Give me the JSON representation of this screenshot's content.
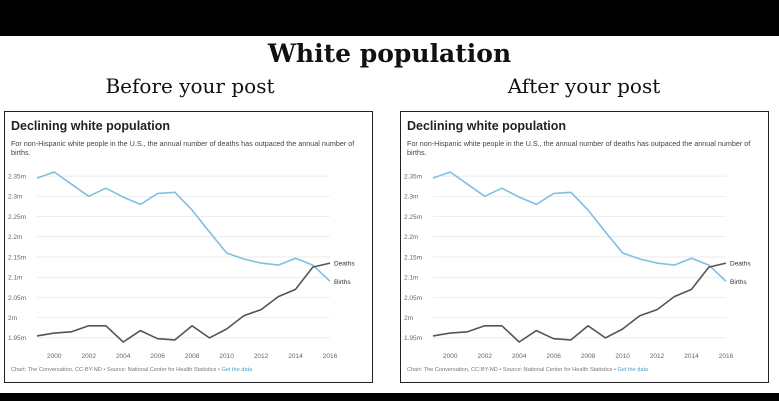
{
  "page": {
    "title": "White population",
    "left_caption": "Before your post",
    "right_caption": "After your post"
  },
  "chart_common": {
    "title": "Declining white population",
    "subtitle": "For non-Hispanic white people in the U.S., the annual number of deaths has outpaced the annual number of births.",
    "footnote": "Chart: The Conversation, CC-BY-ND • Source: National Center for Health Statistics • ",
    "footnote_link": "Get the data"
  },
  "chart_data": [
    {
      "type": "line",
      "title": "Declining white population",
      "x": [
        1999,
        2000,
        2001,
        2002,
        2003,
        2004,
        2005,
        2006,
        2007,
        2008,
        2009,
        2010,
        2011,
        2012,
        2013,
        2014,
        2015,
        2016
      ],
      "series": [
        {
          "name": "Births",
          "color": "#7fbfe0",
          "values": [
            2.345,
            2.36,
            2.33,
            2.3,
            2.32,
            2.298,
            2.28,
            2.307,
            2.31,
            2.266,
            2.212,
            2.16,
            2.145,
            2.135,
            2.13,
            2.147,
            2.13,
            2.09
          ]
        },
        {
          "name": "Deaths",
          "color": "#555555",
          "values": [
            1.955,
            1.962,
            1.965,
            1.98,
            1.98,
            1.94,
            1.968,
            1.948,
            1.945,
            1.98,
            1.95,
            1.972,
            2.005,
            2.02,
            2.052,
            2.07,
            2.125,
            2.135
          ]
        }
      ],
      "y_ticks": [
        1.95,
        2.0,
        2.05,
        2.1,
        2.15,
        2.2,
        2.25,
        2.3,
        2.35
      ],
      "y_tick_labels": [
        "1.95m",
        "2m",
        "2.05m",
        "2.1m",
        "2.15m",
        "2.2m",
        "2.25m",
        "2.3m",
        "2.35m"
      ],
      "x_ticks": [
        2000,
        2002,
        2004,
        2006,
        2008,
        2010,
        2012,
        2014,
        2016
      ],
      "ylim": [
        1.93,
        2.37
      ],
      "xlim": [
        1999,
        2016
      ],
      "grid": true
    },
    {
      "type": "line",
      "title": "Declining white population",
      "x": [
        1999,
        2000,
        2001,
        2002,
        2003,
        2004,
        2005,
        2006,
        2007,
        2008,
        2009,
        2010,
        2011,
        2012,
        2013,
        2014,
        2015,
        2016
      ],
      "series": [
        {
          "name": "Births",
          "color": "#7fbfe0",
          "values": [
            2.345,
            2.36,
            2.33,
            2.3,
            2.32,
            2.298,
            2.28,
            2.307,
            2.31,
            2.266,
            2.212,
            2.16,
            2.145,
            2.135,
            2.13,
            2.147,
            2.13,
            2.09
          ]
        },
        {
          "name": "Deaths",
          "color": "#555555",
          "values": [
            1.955,
            1.962,
            1.965,
            1.98,
            1.98,
            1.94,
            1.968,
            1.948,
            1.945,
            1.98,
            1.95,
            1.972,
            2.005,
            2.02,
            2.052,
            2.07,
            2.125,
            2.135
          ]
        }
      ],
      "y_ticks": [
        1.95,
        2.0,
        2.05,
        2.1,
        2.15,
        2.2,
        2.25,
        2.3,
        2.35
      ],
      "y_tick_labels": [
        "1.95m",
        "2m",
        "2.05m",
        "2.1m",
        "2.15m",
        "2.2m",
        "2.25m",
        "2.3m",
        "2.35m"
      ],
      "x_ticks": [
        2000,
        2002,
        2004,
        2006,
        2008,
        2010,
        2012,
        2014,
        2016
      ],
      "ylim": [
        1.93,
        2.37
      ],
      "xlim": [
        1999,
        2016
      ],
      "grid": true
    }
  ]
}
